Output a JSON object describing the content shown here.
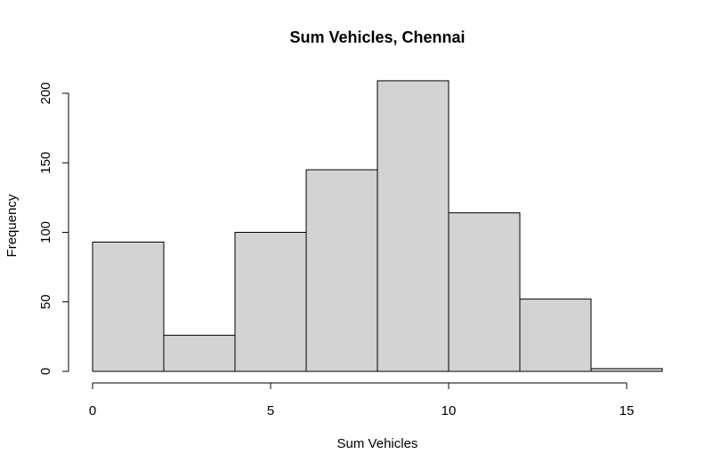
{
  "chart_data": {
    "type": "bar",
    "subtype": "histogram",
    "title": "Sum Vehicles, Chennai",
    "xlabel": "Sum Vehicles",
    "ylabel": "Frequency",
    "bins": [
      {
        "from": 0,
        "to": 2,
        "count": 93
      },
      {
        "from": 2,
        "to": 4,
        "count": 26
      },
      {
        "from": 4,
        "to": 6,
        "count": 100
      },
      {
        "from": 6,
        "to": 8,
        "count": 145
      },
      {
        "from": 8,
        "to": 10,
        "count": 209
      },
      {
        "from": 10,
        "to": 12,
        "count": 114
      },
      {
        "from": 12,
        "to": 14,
        "count": 52
      },
      {
        "from": 14,
        "to": 16,
        "count": 2
      }
    ],
    "xlim": [
      0,
      16
    ],
    "ylim": [
      0,
      209
    ],
    "x_ticks": [
      0,
      5,
      10,
      15
    ],
    "y_ticks": [
      0,
      50,
      100,
      150,
      200
    ],
    "x_tick_labels": [
      "0",
      "5",
      "10",
      "15"
    ],
    "y_tick_labels": [
      "0",
      "50",
      "100",
      "150",
      "200"
    ],
    "bar_fill": "#d3d3d3",
    "bar_stroke": "#000000",
    "grid": false,
    "legend": "none"
  }
}
